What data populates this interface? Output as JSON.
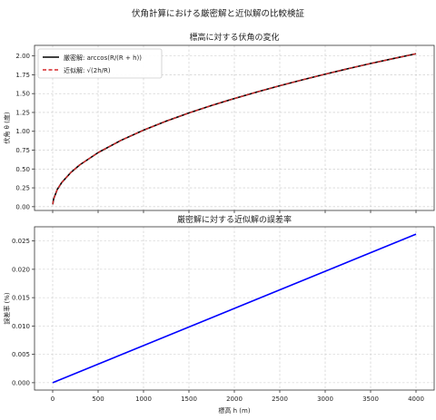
{
  "figure_title": "伏角計算における厳密解と近似解の比較検証",
  "chart_data": [
    {
      "type": "line",
      "title": "標高に対する伏角の変化",
      "xlabel": "",
      "ylabel": "伏角 θ (度)",
      "xlim": [
        -200,
        4200
      ],
      "ylim": [
        -0.05,
        2.14
      ],
      "x_ticks": [
        0,
        500,
        1000,
        1500,
        2000,
        2500,
        3000,
        3500,
        4000
      ],
      "y_ticks": [
        0.0,
        0.25,
        0.5,
        0.75,
        1.0,
        1.25,
        1.5,
        1.75,
        2.0
      ],
      "y_tick_labels": [
        "0.00",
        "0.25",
        "0.50",
        "0.75",
        "1.00",
        "1.25",
        "1.50",
        "1.75",
        "2.00"
      ],
      "grid": true,
      "legend_position": "upper-left",
      "series": [
        {
          "name": "厳密解: arccos(R/(R + h))",
          "color": "#000000",
          "style": "solid",
          "x": [
            1,
            10,
            50,
            100,
            200,
            300,
            500,
            750,
            1000,
            1250,
            1500,
            1750,
            2000,
            2250,
            2500,
            2750,
            3000,
            3250,
            3500,
            3750,
            4000
          ],
          "y": [
            0.032,
            0.101,
            0.227,
            0.321,
            0.454,
            0.556,
            0.717,
            0.879,
            1.015,
            1.135,
            1.243,
            1.343,
            1.435,
            1.522,
            1.605,
            1.683,
            1.758,
            1.83,
            1.899,
            1.965,
            2.029
          ]
        },
        {
          "name": "近似解: √(2h/R)",
          "color": "#d62728",
          "style": "dashed",
          "x": [
            1,
            10,
            50,
            100,
            200,
            300,
            500,
            750,
            1000,
            1250,
            1500,
            1750,
            2000,
            2250,
            2500,
            2750,
            3000,
            3250,
            3500,
            3750,
            4000
          ],
          "y": [
            0.032,
            0.101,
            0.227,
            0.321,
            0.454,
            0.556,
            0.717,
            0.879,
            1.015,
            1.135,
            1.243,
            1.343,
            1.435,
            1.522,
            1.605,
            1.683,
            1.758,
            1.83,
            1.899,
            1.965,
            2.029
          ]
        }
      ]
    },
    {
      "type": "line",
      "title": "厳密解に対する近似解の誤差率",
      "xlabel": "標高 h (m)",
      "ylabel": "誤差率 (%)",
      "xlim": [
        -200,
        4200
      ],
      "ylim": [
        -0.0013,
        0.0275
      ],
      "x_ticks": [
        0,
        500,
        1000,
        1500,
        2000,
        2500,
        3000,
        3500,
        4000
      ],
      "y_ticks": [
        0.0,
        0.005,
        0.01,
        0.015,
        0.02,
        0.025
      ],
      "y_tick_labels": [
        "0.000",
        "0.005",
        "0.010",
        "0.015",
        "0.020",
        "0.025"
      ],
      "grid": true,
      "series": [
        {
          "color": "#0000ff",
          "style": "solid",
          "x": [
            0,
            4000
          ],
          "y": [
            0.0,
            0.0262
          ]
        }
      ]
    }
  ]
}
